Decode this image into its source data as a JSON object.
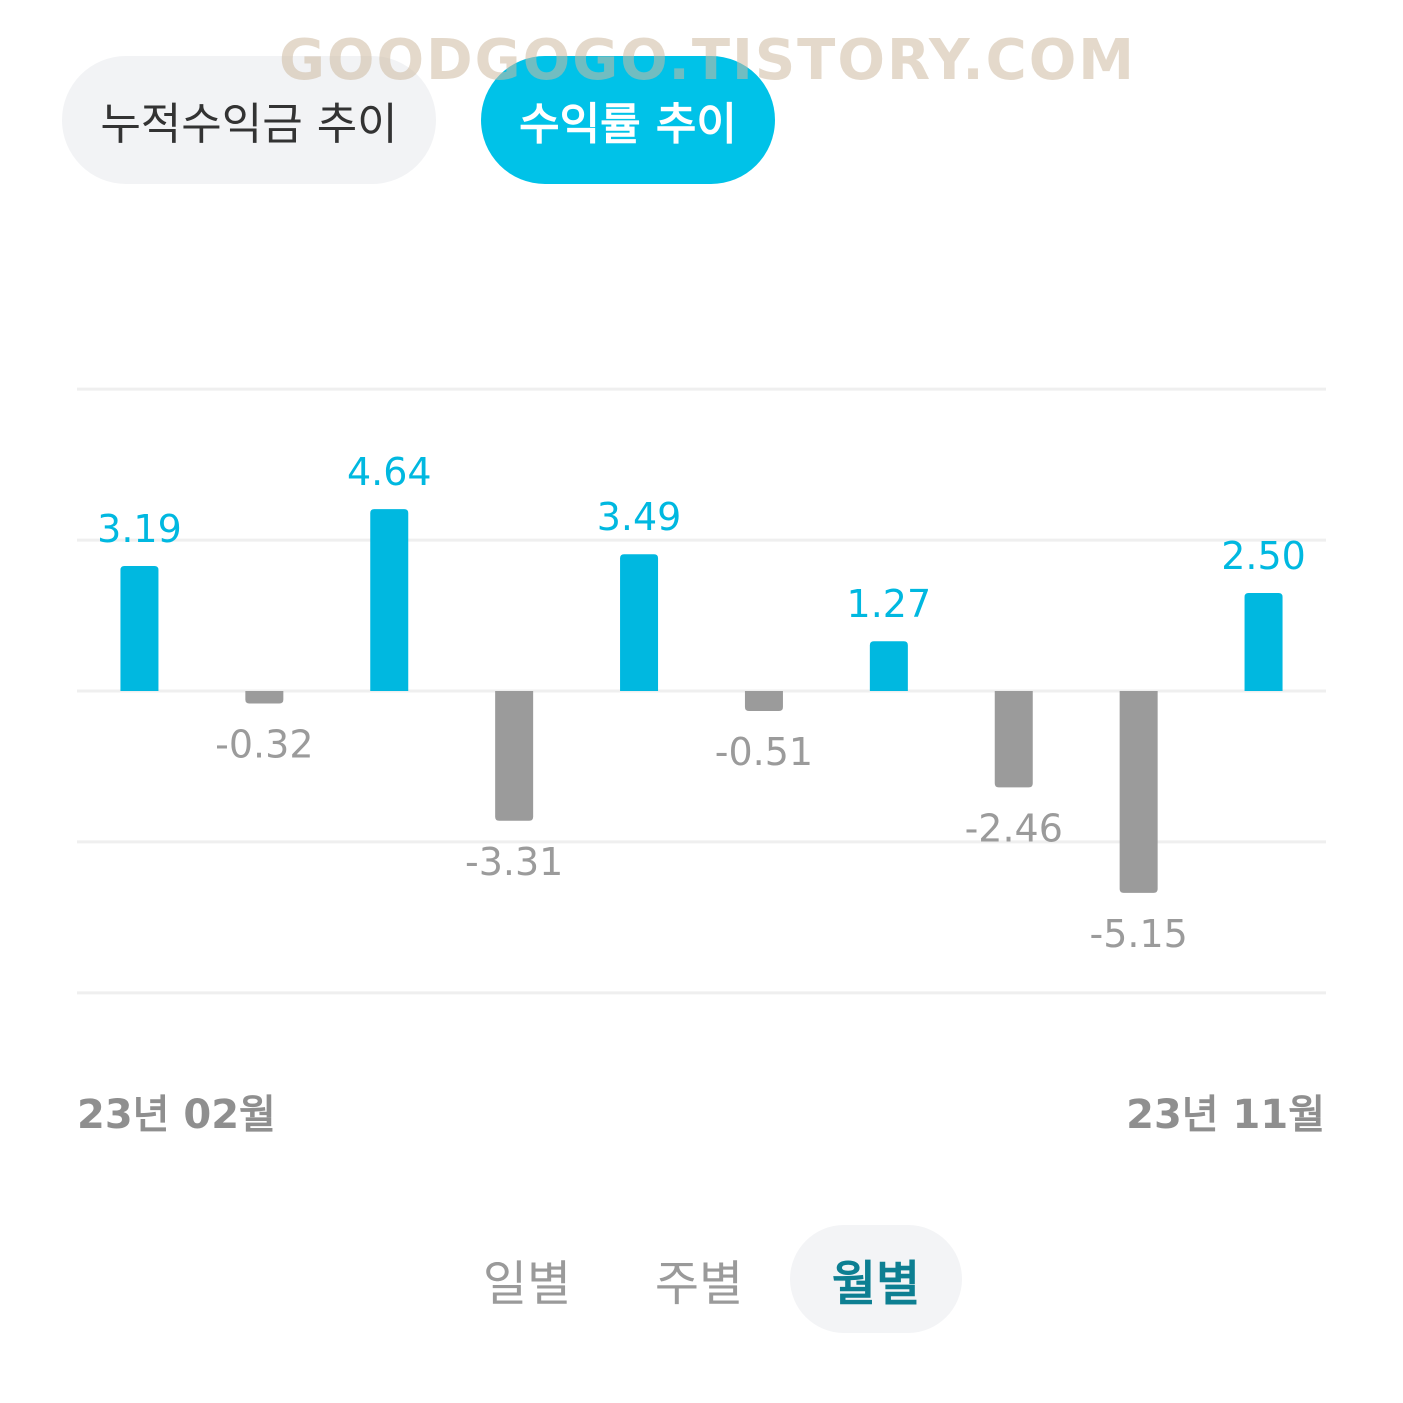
{
  "watermark": "GOODGOGO.TISTORY.COM",
  "tabs": {
    "cumulative_label": "누적수익금 추이",
    "return_label": "수익률 추이",
    "active": "return"
  },
  "colors": {
    "positive": "#00b8e0",
    "negative": "#9b9b9b",
    "accent": "#00c2e8",
    "period_active": "#0d7f92",
    "gridline": "#efefef"
  },
  "chart_data": {
    "type": "bar",
    "values": [
      3.19,
      -0.32,
      4.64,
      -3.31,
      3.49,
      -0.51,
      1.27,
      -2.46,
      -5.15,
      2.5
    ],
    "labels": [
      "3.19",
      "-0.32",
      "4.64",
      "-3.31",
      "3.49",
      "-0.51",
      "1.27",
      "-2.46",
      "-5.15",
      "2.50"
    ],
    "x_start_label": "23년 02월",
    "x_end_label": "23년 11월",
    "grid": true
  },
  "period": {
    "daily": "일별",
    "weekly": "주별",
    "monthly": "월별",
    "active": "monthly"
  }
}
